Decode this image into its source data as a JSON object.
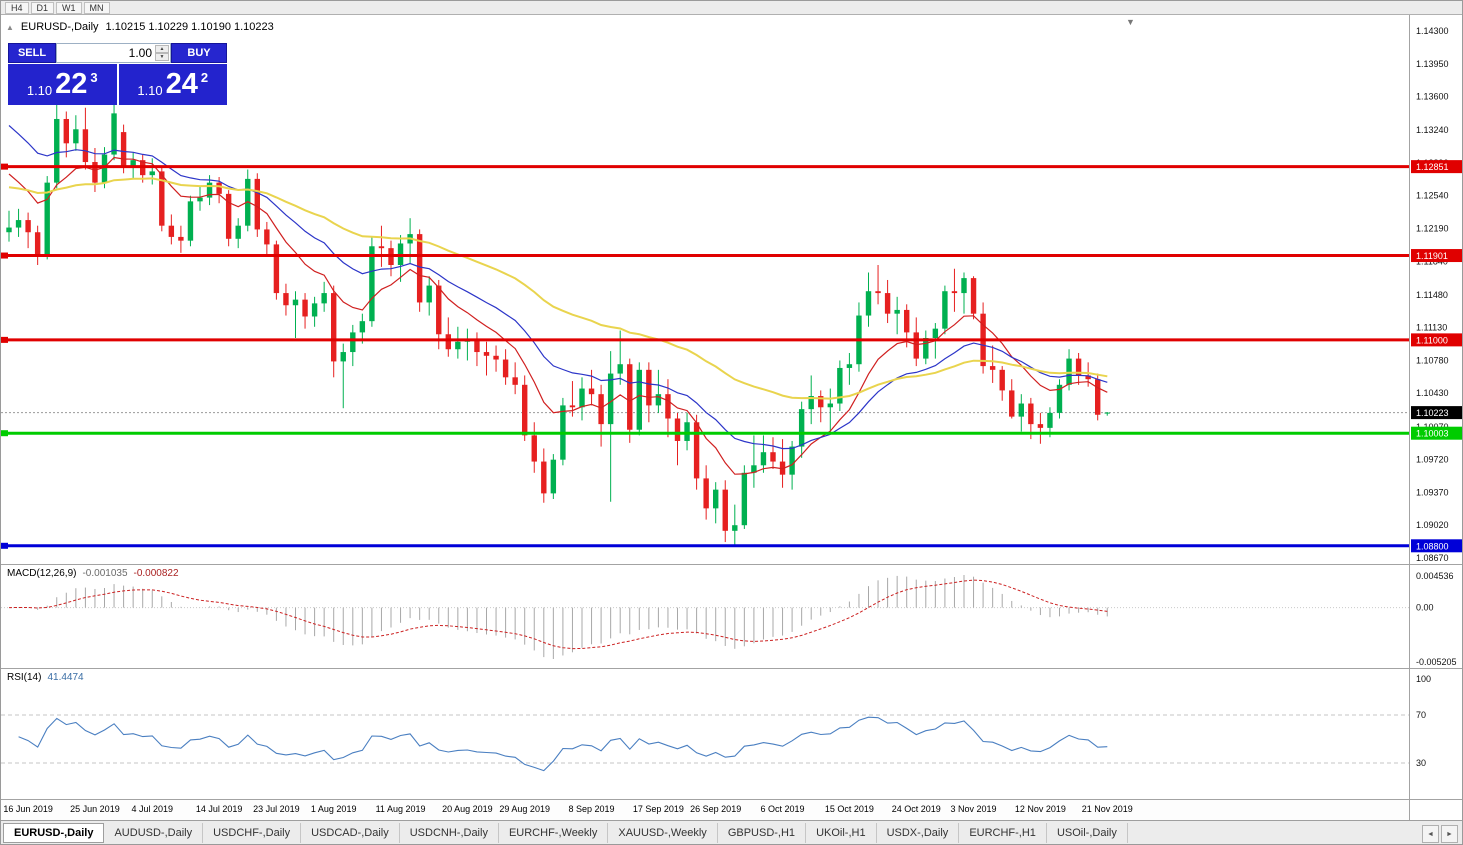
{
  "toolbar": {
    "timeframes": [
      "H4",
      "D1",
      "W1",
      "MN"
    ]
  },
  "icons": {
    "object_marker": "▲",
    "auto_scroll": "▼",
    "volume_up": "▲",
    "volume_down": "▼",
    "tab_scroll_left": "◄",
    "tab_scroll_right": "►"
  },
  "chart": {
    "symbol": "EURUSD-,Daily",
    "ohlc_text": "1.10215 1.10229 1.10190 1.10223"
  },
  "trade_panel": {
    "sell_label": "SELL",
    "buy_label": "BUY",
    "volume": "1.00",
    "sell_price_base": "1.10",
    "sell_price_big": "22",
    "sell_price_sup": "3",
    "buy_price_base": "1.10",
    "buy_price_big": "24",
    "buy_price_sup": "2"
  },
  "macd": {
    "name": "MACD(12,26,9)",
    "value1": "-0.001035",
    "value2": "-0.000822",
    "axis_top": "0.004536",
    "axis_zero": "0.00",
    "axis_bottom": "-0.005205",
    "bar_color": "#a8a8a8",
    "signal_color": "#cc2222"
  },
  "rsi": {
    "name": "RSI(14)",
    "value": "41.4474",
    "axis": [
      "100",
      "70",
      "30"
    ],
    "levels": [
      70,
      30
    ],
    "line_color": "#4a7fc1"
  },
  "tabs": {
    "active_index": 0,
    "items": [
      "EURUSD-,Daily",
      "AUDUSD-,Daily",
      "USDCHF-,Daily",
      "USDCAD-,Daily",
      "USDCNH-,Daily",
      "EURCHF-,Weekly",
      "XAUUSD-,Weekly",
      "GBPUSD-,H1",
      "UKOil-,H1",
      "USDX-,Daily",
      "EURCHF-,H1",
      "USOil-,Daily"
    ]
  },
  "chart_data": {
    "type": "candlestick",
    "title": "EURUSD-,Daily",
    "colors": {
      "bull": "#00b050",
      "bear": "#e62020"
    },
    "y_ticks": [
      "1.14300",
      "1.13950",
      "1.13600",
      "1.13240",
      "1.12890",
      "1.12540",
      "1.12190",
      "1.11840",
      "1.11480",
      "1.11130",
      "1.10780",
      "1.10430",
      "1.10070",
      "1.09720",
      "1.09370",
      "1.09020",
      "1.08670"
    ],
    "hlines": [
      {
        "price": 1.12851,
        "label": "1.12851",
        "color": "#e00000"
      },
      {
        "price": 1.11901,
        "label": "1.11901",
        "color": "#e00000"
      },
      {
        "price": 1.11,
        "label": "1.11000",
        "color": "#e00000"
      },
      {
        "price": 1.10003,
        "label": "1.10003",
        "color": "#00cc00"
      },
      {
        "price": 1.088,
        "label": "1.08800",
        "color": "#0000d8"
      }
    ],
    "current_price": {
      "value": 1.10223,
      "label": "1.10223",
      "tag_color": "#000000"
    },
    "ma": [
      {
        "period": 10,
        "color": "#d02020",
        "width": 1.2,
        "seed": 1.129
      },
      {
        "period": 21,
        "color": "#2c35c8",
        "width": 1.2,
        "seed": 1.134
      },
      {
        "period": 48,
        "color": "#e9d44e",
        "width": 2.0,
        "seed": 1.1265
      }
    ],
    "date_labels": [
      {
        "t": "16 Jun 2019",
        "i": 2
      },
      {
        "t": "25 Jun 2019",
        "i": 9
      },
      {
        "t": "4 Jul 2019",
        "i": 15
      },
      {
        "t": "14 Jul 2019",
        "i": 22
      },
      {
        "t": "23 Jul 2019",
        "i": 28
      },
      {
        "t": "1 Aug 2019",
        "i": 34
      },
      {
        "t": "11 Aug 2019",
        "i": 41
      },
      {
        "t": "20 Aug 2019",
        "i": 48
      },
      {
        "t": "29 Aug 2019",
        "i": 54
      },
      {
        "t": "8 Sep 2019",
        "i": 61
      },
      {
        "t": "17 Sep 2019",
        "i": 68
      },
      {
        "t": "26 Sep 2019",
        "i": 74
      },
      {
        "t": "6 Oct 2019",
        "i": 81
      },
      {
        "t": "15 Oct 2019",
        "i": 88
      },
      {
        "t": "24 Oct 2019",
        "i": 95
      },
      {
        "t": "3 Nov 2019",
        "i": 101
      },
      {
        "t": "12 Nov 2019",
        "i": 108
      },
      {
        "t": "21 Nov 2019",
        "i": 115
      }
    ],
    "candles": [
      [
        1.1215,
        1.1238,
        1.1205,
        1.122
      ],
      [
        1.122,
        1.124,
        1.121,
        1.1228
      ],
      [
        1.1228,
        1.1236,
        1.1198,
        1.1215
      ],
      [
        1.1215,
        1.1222,
        1.118,
        1.119
      ],
      [
        1.119,
        1.1275,
        1.1186,
        1.1268
      ],
      [
        1.1268,
        1.1352,
        1.1262,
        1.1336
      ],
      [
        1.1336,
        1.1344,
        1.1295,
        1.131
      ],
      [
        1.131,
        1.134,
        1.1302,
        1.1325
      ],
      [
        1.1325,
        1.1348,
        1.1282,
        1.129
      ],
      [
        1.129,
        1.1305,
        1.1258,
        1.1268
      ],
      [
        1.1268,
        1.1306,
        1.1262,
        1.1298
      ],
      [
        1.1298,
        1.1356,
        1.1292,
        1.1342
      ],
      [
        1.1322,
        1.133,
        1.1278,
        1.1286
      ],
      [
        1.1286,
        1.13,
        1.1272,
        1.1292
      ],
      [
        1.1292,
        1.1298,
        1.1268,
        1.1276
      ],
      [
        1.1276,
        1.1294,
        1.1266,
        1.128
      ],
      [
        1.128,
        1.1286,
        1.1216,
        1.1222
      ],
      [
        1.1222,
        1.1234,
        1.1202,
        1.121
      ],
      [
        1.121,
        1.1222,
        1.1193,
        1.1206
      ],
      [
        1.1206,
        1.1254,
        1.12,
        1.1248
      ],
      [
        1.1248,
        1.1264,
        1.1238,
        1.1252
      ],
      [
        1.1252,
        1.1276,
        1.1244,
        1.1268
      ],
      [
        1.1268,
        1.1274,
        1.1246,
        1.1256
      ],
      [
        1.1256,
        1.126,
        1.12,
        1.1208
      ],
      [
        1.1208,
        1.123,
        1.1198,
        1.1222
      ],
      [
        1.1222,
        1.1282,
        1.1216,
        1.1272
      ],
      [
        1.1272,
        1.1278,
        1.121,
        1.1218
      ],
      [
        1.1218,
        1.1226,
        1.119,
        1.1202
      ],
      [
        1.1202,
        1.1206,
        1.1143,
        1.115
      ],
      [
        1.115,
        1.116,
        1.1126,
        1.1137
      ],
      [
        1.1137,
        1.1152,
        1.1102,
        1.1143
      ],
      [
        1.1143,
        1.115,
        1.1112,
        1.1125
      ],
      [
        1.1125,
        1.1146,
        1.1114,
        1.1139
      ],
      [
        1.1139,
        1.1162,
        1.113,
        1.115
      ],
      [
        1.115,
        1.1158,
        1.106,
        1.1077
      ],
      [
        1.1077,
        1.1096,
        1.1027,
        1.1087
      ],
      [
        1.1087,
        1.1116,
        1.1072,
        1.1108
      ],
      [
        1.1108,
        1.1128,
        1.1096,
        1.112
      ],
      [
        1.112,
        1.121,
        1.1114,
        1.12
      ],
      [
        1.12,
        1.1222,
        1.1178,
        1.1198
      ],
      [
        1.1198,
        1.1206,
        1.1168,
        1.118
      ],
      [
        1.118,
        1.1212,
        1.1162,
        1.1203
      ],
      [
        1.1203,
        1.123,
        1.1182,
        1.1213
      ],
      [
        1.1213,
        1.1218,
        1.113,
        1.114
      ],
      [
        1.114,
        1.1168,
        1.1126,
        1.1158
      ],
      [
        1.1158,
        1.1164,
        1.109,
        1.1106
      ],
      [
        1.1106,
        1.1124,
        1.1082,
        1.109
      ],
      [
        1.109,
        1.1114,
        1.108,
        1.1098
      ],
      [
        1.1098,
        1.1112,
        1.1078,
        1.11
      ],
      [
        1.11,
        1.1108,
        1.1072,
        1.1087
      ],
      [
        1.1087,
        1.1098,
        1.1062,
        1.1083
      ],
      [
        1.1083,
        1.1094,
        1.1066,
        1.1079
      ],
      [
        1.1079,
        1.109,
        1.1052,
        1.106
      ],
      [
        1.106,
        1.1076,
        1.1042,
        1.1052
      ],
      [
        1.1052,
        1.1062,
        1.0992,
        1.0998
      ],
      [
        1.0998,
        1.1012,
        1.0958,
        1.097
      ],
      [
        1.097,
        1.0984,
        1.0926,
        1.0936
      ],
      [
        1.0936,
        1.0978,
        1.093,
        1.0972
      ],
      [
        1.0972,
        1.1038,
        1.0966,
        1.103
      ],
      [
        1.103,
        1.1056,
        1.1018,
        1.1028
      ],
      [
        1.1028,
        1.106,
        1.1014,
        1.1048
      ],
      [
        1.1048,
        1.1068,
        1.103,
        1.1042
      ],
      [
        1.1042,
        1.1052,
        1.0986,
        1.101
      ],
      [
        1.101,
        1.1088,
        1.0927,
        1.1064
      ],
      [
        1.1064,
        1.111,
        1.1052,
        1.1074
      ],
      [
        1.1074,
        1.108,
        1.099,
        1.1004
      ],
      [
        1.1004,
        1.1076,
        1.0998,
        1.1068
      ],
      [
        1.1068,
        1.1076,
        1.1012,
        1.103
      ],
      [
        1.103,
        1.1068,
        1.1022,
        1.1042
      ],
      [
        1.1042,
        1.1058,
        1.0996,
        1.1016
      ],
      [
        1.1016,
        1.1022,
        1.0966,
        1.0992
      ],
      [
        1.0992,
        1.1022,
        1.0982,
        1.1012
      ],
      [
        1.1012,
        1.102,
        1.094,
        1.0952
      ],
      [
        1.0952,
        1.0966,
        1.0908,
        1.092
      ],
      [
        1.092,
        1.0948,
        1.0904,
        1.094
      ],
      [
        1.094,
        1.095,
        1.0884,
        1.0896
      ],
      [
        1.0896,
        1.0924,
        1.0879,
        1.0902
      ],
      [
        1.0902,
        1.0966,
        1.0898,
        1.0958
      ],
      [
        1.0958,
        1.0998,
        1.0942,
        1.0966
      ],
      [
        1.0966,
        1.0998,
        1.0958,
        1.098
      ],
      [
        1.098,
        1.0996,
        1.0962,
        1.097
      ],
      [
        1.097,
        1.0994,
        1.0942,
        1.0956
      ],
      [
        1.0956,
        1.0992,
        1.094,
        1.0986
      ],
      [
        1.0986,
        1.1034,
        1.0974,
        1.1026
      ],
      [
        1.1026,
        1.1062,
        1.101,
        1.104
      ],
      [
        1.104,
        1.1046,
        1.1012,
        1.1028
      ],
      [
        1.1028,
        1.1048,
        1.1,
        1.1032
      ],
      [
        1.1032,
        1.1078,
        1.1024,
        1.107
      ],
      [
        1.107,
        1.1086,
        1.1052,
        1.1074
      ],
      [
        1.1074,
        1.114,
        1.1066,
        1.1126
      ],
      [
        1.1126,
        1.1172,
        1.1114,
        1.1152
      ],
      [
        1.1152,
        1.118,
        1.1138,
        1.115
      ],
      [
        1.115,
        1.1164,
        1.1118,
        1.1128
      ],
      [
        1.1128,
        1.1146,
        1.1106,
        1.1132
      ],
      [
        1.1132,
        1.1138,
        1.1092,
        1.1108
      ],
      [
        1.1108,
        1.1124,
        1.1072,
        1.108
      ],
      [
        1.108,
        1.111,
        1.1074,
        1.1102
      ],
      [
        1.1102,
        1.1118,
        1.108,
        1.1112
      ],
      [
        1.1112,
        1.1158,
        1.1106,
        1.1152
      ],
      [
        1.1152,
        1.1176,
        1.113,
        1.115
      ],
      [
        1.115,
        1.1172,
        1.1128,
        1.1166
      ],
      [
        1.1166,
        1.1168,
        1.1122,
        1.1128
      ],
      [
        1.1128,
        1.114,
        1.1064,
        1.1072
      ],
      [
        1.1072,
        1.1094,
        1.1054,
        1.1068
      ],
      [
        1.1068,
        1.1072,
        1.1035,
        1.1046
      ],
      [
        1.1046,
        1.1058,
        1.1016,
        1.1018
      ],
      [
        1.1018,
        1.1042,
        1.1002,
        1.1032
      ],
      [
        1.1032,
        1.1038,
        1.0994,
        1.101
      ],
      [
        1.101,
        1.1022,
        1.0989,
        1.1006
      ],
      [
        1.1006,
        1.1028,
        1.0996,
        1.1022
      ],
      [
        1.1022,
        1.1058,
        1.1016,
        1.1052
      ],
      [
        1.1052,
        1.109,
        1.1046,
        1.108
      ],
      [
        1.108,
        1.1086,
        1.1052,
        1.1062
      ],
      [
        1.1062,
        1.1076,
        1.105,
        1.1058
      ],
      [
        1.1058,
        1.1064,
        1.1014,
        1.102
      ],
      [
        1.10215,
        1.10229,
        1.1019,
        1.10223
      ]
    ]
  }
}
